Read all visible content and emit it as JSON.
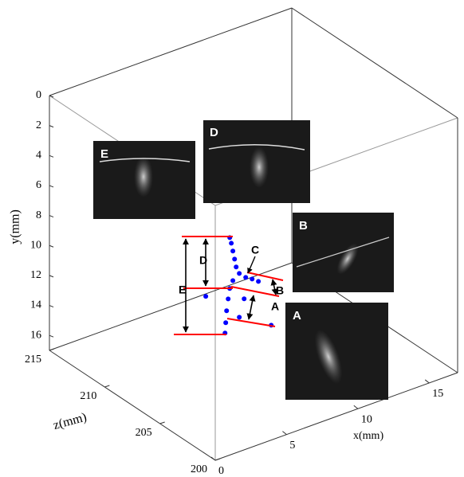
{
  "chart_data": {
    "type": "scatter3d",
    "xlabel": "x(mm)",
    "ylabel": "y(mm)",
    "zlabel": "z(mm)",
    "xlim": [
      0,
      17
    ],
    "ylim": [
      0,
      17
    ],
    "zlim": [
      200,
      215
    ],
    "xticks": [
      0,
      5,
      10,
      15
    ],
    "yticks": [
      0,
      2,
      4,
      6,
      8,
      10,
      12,
      14,
      16
    ],
    "zticks": [
      200,
      205,
      210,
      215
    ],
    "y_inverted": true,
    "color": "#0000ff",
    "x": [
      8.77,
      8.88,
      8.99,
      9.11,
      9.22,
      9.44,
      9.89,
      10.34,
      10.78,
      8.99,
      8.77,
      8.66,
      8.55,
      8.49,
      8.44,
      9.44,
      11.68,
      7.09,
      9.78
    ],
    "y": [
      10.05,
      10.46,
      11.02,
      11.6,
      12.16,
      12.67,
      13.09,
      13.35,
      13.66,
      12.99,
      13.44,
      14.1,
      14.85,
      15.63,
      16.3,
      15.59,
      16.89,
      13.39,
      14.48
    ],
    "z": [
      210,
      210,
      210,
      210,
      210,
      210,
      210,
      210,
      210,
      210,
      210,
      210,
      210,
      210,
      210,
      210,
      210,
      210,
      210
    ],
    "annotations": [
      "A",
      "B",
      "C",
      "D",
      "E"
    ],
    "image_labels": [
      "E",
      "D",
      "B",
      "A"
    ]
  }
}
